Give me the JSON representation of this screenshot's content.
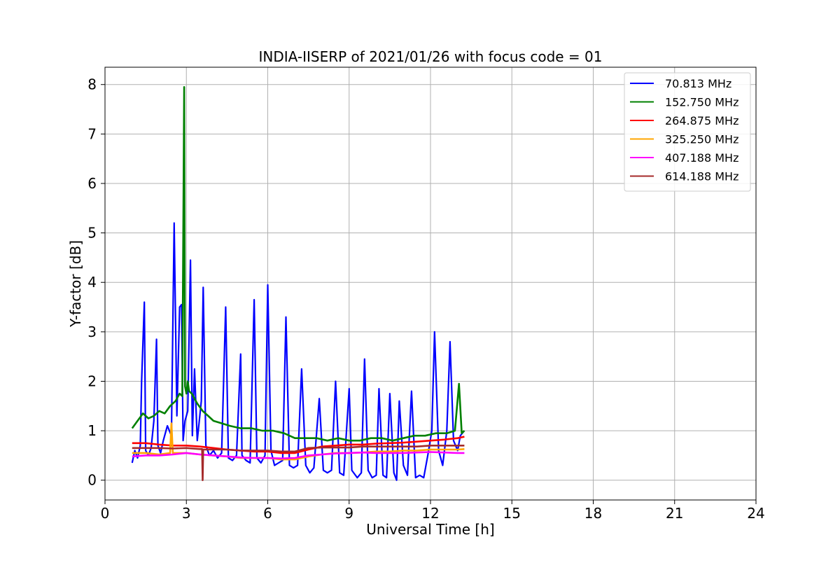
{
  "chart_data": {
    "type": "line",
    "title": "INDIA-IISERP of 2021/01/26 with focus code = 01",
    "xlabel": "Universal Time [h]",
    "ylabel": "Y-factor [dB]",
    "xlim": [
      0,
      24
    ],
    "ylim": [
      -0.4,
      8.35
    ],
    "xticks": [
      0,
      3,
      6,
      9,
      12,
      15,
      18,
      21,
      24
    ],
    "yticks": [
      0,
      1,
      2,
      3,
      4,
      5,
      6,
      7,
      8
    ],
    "grid": true,
    "legend_position": "top-right",
    "series": [
      {
        "name": " 70.813 MHz",
        "color": "#0000ff",
        "x": [
          1.0,
          1.1,
          1.2,
          1.3,
          1.35,
          1.45,
          1.5,
          1.6,
          1.7,
          1.8,
          1.9,
          1.95,
          2.05,
          2.15,
          2.3,
          2.45,
          2.55,
          2.65,
          2.75,
          2.82,
          2.88,
          2.95,
          3.05,
          3.15,
          3.22,
          3.3,
          3.4,
          3.55,
          3.62,
          3.72,
          3.85,
          4.0,
          4.15,
          4.3,
          4.45,
          4.55,
          4.7,
          4.85,
          5.0,
          5.05,
          5.2,
          5.35,
          5.5,
          5.6,
          5.75,
          5.9,
          6.0,
          6.12,
          6.25,
          6.4,
          6.55,
          6.67,
          6.8,
          6.95,
          7.1,
          7.25,
          7.4,
          7.55,
          7.7,
          7.9,
          8.05,
          8.2,
          8.35,
          8.5,
          8.65,
          8.8,
          9.0,
          9.1,
          9.3,
          9.45,
          9.57,
          9.7,
          9.85,
          10.0,
          10.1,
          10.25,
          10.38,
          10.5,
          10.65,
          10.75,
          10.85,
          11.0,
          11.15,
          11.3,
          11.45,
          11.6,
          11.75,
          11.9,
          12.05,
          12.15,
          12.3,
          12.45,
          12.6,
          12.72,
          12.85,
          13.0,
          13.1,
          13.25
        ],
        "y": [
          0.35,
          0.6,
          0.45,
          0.7,
          2.0,
          3.6,
          0.6,
          0.5,
          0.65,
          1.2,
          2.85,
          0.7,
          0.55,
          0.8,
          1.1,
          0.9,
          5.2,
          1.3,
          3.5,
          3.55,
          0.8,
          1.2,
          1.4,
          4.45,
          0.9,
          2.25,
          0.8,
          1.6,
          3.9,
          0.7,
          0.5,
          0.6,
          0.45,
          0.55,
          3.5,
          0.45,
          0.4,
          0.5,
          2.55,
          0.5,
          0.4,
          0.35,
          3.65,
          0.45,
          0.35,
          0.5,
          3.95,
          0.6,
          0.3,
          0.35,
          0.4,
          3.3,
          0.3,
          0.25,
          0.3,
          2.25,
          0.3,
          0.15,
          0.25,
          1.65,
          0.2,
          0.15,
          0.2,
          2.0,
          0.15,
          0.1,
          1.85,
          0.2,
          0.05,
          0.15,
          2.45,
          0.2,
          0.05,
          0.1,
          1.85,
          0.1,
          0.05,
          1.75,
          0.15,
          0.0,
          1.6,
          0.3,
          0.1,
          1.8,
          0.05,
          0.1,
          0.05,
          0.5,
          1.0,
          3.0,
          0.6,
          0.3,
          1.0,
          2.8,
          0.8,
          0.6,
          0.9,
          1.0
        ]
      },
      {
        "name": "152.750 MHz",
        "color": "#008000",
        "x": [
          1.0,
          1.2,
          1.4,
          1.6,
          1.8,
          2.0,
          2.2,
          2.4,
          2.6,
          2.75,
          2.85,
          2.92,
          2.95,
          3.0,
          3.05,
          3.1,
          3.2,
          3.4,
          3.6,
          3.8,
          4.0,
          4.3,
          4.6,
          5.0,
          5.4,
          5.8,
          6.2,
          6.6,
          7.0,
          7.4,
          7.8,
          8.2,
          8.6,
          9.0,
          9.4,
          9.8,
          10.2,
          10.6,
          11.0,
          11.4,
          11.8,
          12.2,
          12.6,
          12.9,
          13.05,
          13.15,
          13.25
        ],
        "y": [
          1.05,
          1.2,
          1.35,
          1.25,
          1.3,
          1.4,
          1.35,
          1.5,
          1.6,
          1.75,
          1.7,
          7.95,
          1.9,
          1.75,
          2.0,
          1.8,
          1.75,
          1.55,
          1.4,
          1.3,
          1.2,
          1.15,
          1.1,
          1.05,
          1.05,
          1.0,
          1.0,
          0.95,
          0.85,
          0.85,
          0.85,
          0.8,
          0.85,
          0.8,
          0.8,
          0.85,
          0.85,
          0.8,
          0.85,
          0.9,
          0.9,
          0.95,
          0.95,
          1.0,
          1.95,
          0.95,
          1.0
        ]
      },
      {
        "name": "264.875 MHz",
        "color": "#ff0000",
        "x": [
          1.0,
          1.5,
          2.0,
          2.5,
          3.0,
          3.5,
          4.0,
          4.5,
          5.0,
          5.5,
          6.0,
          6.5,
          7.0,
          7.5,
          8.0,
          8.5,
          9.0,
          9.5,
          10.0,
          10.5,
          11.0,
          11.5,
          12.0,
          12.5,
          13.0,
          13.25
        ],
        "y": [
          0.75,
          0.75,
          0.72,
          0.7,
          0.7,
          0.68,
          0.65,
          0.62,
          0.6,
          0.58,
          0.58,
          0.55,
          0.55,
          0.62,
          0.68,
          0.7,
          0.72,
          0.72,
          0.74,
          0.75,
          0.76,
          0.78,
          0.8,
          0.82,
          0.85,
          0.88
        ]
      },
      {
        "name": "325.250 MHz",
        "color": "#ffa500",
        "x": [
          1.0,
          1.5,
          2.0,
          2.4,
          2.45,
          2.5,
          3.0,
          3.5,
          4.0,
          4.5,
          5.0,
          5.5,
          6.0,
          6.5,
          7.0,
          7.5,
          8.0,
          8.5,
          9.0,
          9.5,
          10.0,
          10.5,
          11.0,
          11.5,
          12.0,
          12.5,
          13.0,
          13.25
        ],
        "y": [
          0.55,
          0.55,
          0.52,
          0.55,
          1.15,
          0.55,
          0.55,
          0.52,
          0.5,
          0.48,
          0.45,
          0.45,
          0.45,
          0.42,
          0.42,
          0.48,
          0.52,
          0.55,
          0.55,
          0.56,
          0.58,
          0.58,
          0.6,
          0.6,
          0.62,
          0.62,
          0.62,
          0.63
        ]
      },
      {
        "name": "407.188 MHz",
        "color": "#ff00ff",
        "x": [
          1.0,
          1.5,
          2.0,
          2.5,
          3.0,
          3.5,
          4.0,
          4.5,
          5.0,
          5.5,
          6.0,
          6.5,
          7.0,
          7.5,
          8.0,
          8.5,
          9.0,
          9.5,
          10.0,
          10.5,
          11.0,
          11.5,
          12.0,
          12.5,
          13.0,
          13.25
        ],
        "y": [
          0.48,
          0.5,
          0.5,
          0.52,
          0.55,
          0.52,
          0.5,
          0.48,
          0.46,
          0.45,
          0.45,
          0.44,
          0.45,
          0.5,
          0.52,
          0.54,
          0.55,
          0.56,
          0.55,
          0.55,
          0.55,
          0.56,
          0.57,
          0.56,
          0.55,
          0.55
        ]
      },
      {
        "name": "614.188 MHz",
        "color": "#a52a2a",
        "x": [
          1.0,
          1.5,
          2.0,
          2.5,
          3.0,
          3.5,
          3.58,
          3.6,
          3.62,
          4.0,
          4.5,
          5.0,
          5.5,
          6.0,
          6.5,
          7.0,
          7.5,
          8.0,
          8.5,
          9.0,
          9.5,
          10.0,
          10.5,
          11.0,
          11.5,
          12.0,
          12.5,
          13.0,
          13.25
        ],
        "y": [
          0.65,
          0.65,
          0.65,
          0.64,
          0.65,
          0.63,
          0.63,
          0.0,
          0.62,
          0.62,
          0.62,
          0.6,
          0.6,
          0.6,
          0.58,
          0.58,
          0.65,
          0.66,
          0.66,
          0.66,
          0.68,
          0.68,
          0.68,
          0.68,
          0.68,
          0.7,
          0.7,
          0.7,
          0.7
        ]
      }
    ]
  }
}
